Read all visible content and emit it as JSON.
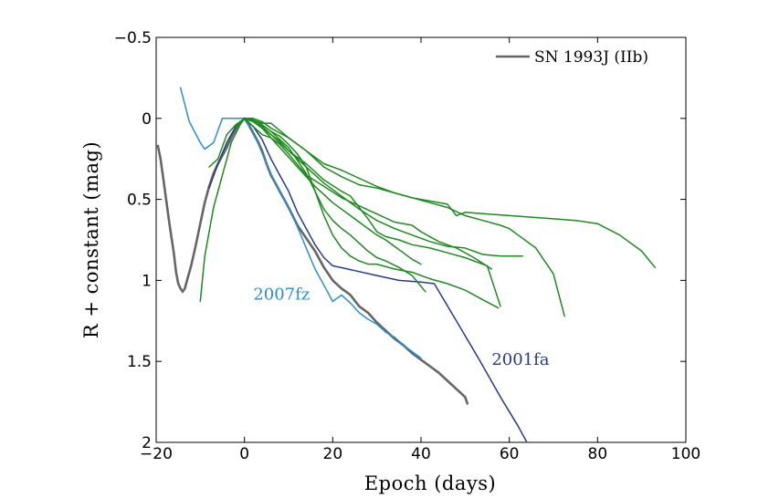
{
  "chart_data": {
    "type": "line",
    "title": "",
    "xlabel": "Epoch (days)",
    "ylabel": "R + constant (mag)",
    "xlim": [
      -20,
      100
    ],
    "ylim": [
      -0.5,
      2
    ],
    "y_inverted": true,
    "grid": false,
    "legend_position": "top-right",
    "x_ticks": [
      -20,
      0,
      20,
      40,
      60,
      80,
      100
    ],
    "x_tick_labels": [
      "−20",
      "0",
      "20",
      "40",
      "60",
      "80",
      "100"
    ],
    "y_ticks": [
      -0.5,
      0,
      0.5,
      1,
      1.5,
      2
    ],
    "y_tick_labels": [
      "−0.5",
      "0",
      "0.5",
      "1",
      "1.5",
      "2"
    ],
    "legend": [
      {
        "label": "SN 1993J (IIb)",
        "color": "#666666"
      }
    ],
    "annotations": [
      {
        "text": "2007fz",
        "x": 2,
        "y": 1.12,
        "color": "#2a8fcf"
      },
      {
        "text": "2001fa",
        "x": 56,
        "y": 1.52,
        "color": "#283a8a"
      }
    ],
    "series": [
      {
        "name": "SN 1993J (IIb)",
        "color": "#666666",
        "width": 2.6,
        "points": [
          [
            -19.6,
            0.17
          ],
          [
            -19,
            0.25
          ],
          [
            -18,
            0.45
          ],
          [
            -17,
            0.65
          ],
          [
            -16,
            0.83
          ],
          [
            -15.5,
            0.95
          ],
          [
            -15,
            1.02
          ],
          [
            -14.5,
            1.05
          ],
          [
            -14,
            1.07
          ],
          [
            -13.5,
            1.05
          ],
          [
            -13,
            1.0
          ],
          [
            -12.5,
            0.95
          ],
          [
            -12,
            0.9
          ],
          [
            -11,
            0.78
          ],
          [
            -10,
            0.65
          ],
          [
            -9,
            0.52
          ],
          [
            -8,
            0.42
          ],
          [
            -7,
            0.34
          ],
          [
            -6,
            0.28
          ],
          [
            -5,
            0.23
          ],
          [
            -4,
            0.18
          ],
          [
            -3,
            0.12
          ],
          [
            -2,
            0.07
          ],
          [
            -1,
            0.03
          ],
          [
            0,
            0.0
          ],
          [
            1,
            0.04
          ],
          [
            2,
            0.09
          ],
          [
            3,
            0.14
          ],
          [
            4,
            0.2
          ],
          [
            5,
            0.28
          ],
          [
            6,
            0.35
          ],
          [
            7,
            0.4
          ],
          [
            8,
            0.45
          ],
          [
            9,
            0.5
          ],
          [
            10,
            0.55
          ],
          [
            12,
            0.66
          ],
          [
            14,
            0.74
          ],
          [
            16,
            0.82
          ],
          [
            18,
            0.92
          ],
          [
            20,
            1.0
          ],
          [
            22,
            1.05
          ],
          [
            24,
            1.09
          ],
          [
            26,
            1.16
          ],
          [
            28,
            1.2
          ],
          [
            30,
            1.26
          ],
          [
            32,
            1.31
          ],
          [
            34,
            1.36
          ],
          [
            36,
            1.4
          ],
          [
            38,
            1.45
          ],
          [
            40,
            1.49
          ],
          [
            42,
            1.53
          ],
          [
            44,
            1.57
          ],
          [
            46,
            1.62
          ],
          [
            48,
            1.67
          ],
          [
            50,
            1.72
          ],
          [
            50.5,
            1.76
          ]
        ]
      },
      {
        "name": "",
        "color": "#2a8fcf",
        "width": 1.5,
        "points": [
          [
            -14.5,
            -0.19
          ],
          [
            -12.5,
            0.02
          ],
          [
            -10,
            0.15
          ],
          [
            -9,
            0.19
          ],
          [
            -7,
            0.15
          ],
          [
            -5,
            0.0
          ],
          [
            -3,
            0.0
          ],
          [
            -1,
            0.0
          ],
          [
            0,
            0.0
          ],
          [
            1,
            0.05
          ],
          [
            3,
            0.15
          ],
          [
            5,
            0.28
          ],
          [
            7,
            0.4
          ],
          [
            10,
            0.55
          ],
          [
            12,
            0.67
          ],
          [
            14,
            0.8
          ],
          [
            16,
            0.93
          ],
          [
            18,
            1.03
          ],
          [
            20,
            1.13
          ],
          [
            22,
            1.09
          ],
          [
            24,
            1.14
          ],
          [
            26,
            1.2
          ],
          [
            28,
            1.24
          ],
          [
            30,
            1.27
          ],
          [
            32,
            1.32
          ],
          [
            34,
            1.35
          ],
          [
            36,
            1.4
          ],
          [
            38,
            1.44
          ],
          [
            40,
            1.48
          ]
        ]
      },
      {
        "name": "",
        "color": "#283a8a",
        "width": 1.5,
        "points": [
          [
            -8,
            0.43
          ],
          [
            -6,
            0.28
          ],
          [
            -4,
            0.15
          ],
          [
            -2,
            0.05
          ],
          [
            0,
            0.0
          ],
          [
            2,
            0.05
          ],
          [
            4,
            0.13
          ],
          [
            6,
            0.25
          ],
          [
            8,
            0.35
          ],
          [
            10,
            0.45
          ],
          [
            12,
            0.58
          ],
          [
            14,
            0.68
          ],
          [
            16,
            0.78
          ],
          [
            18,
            0.86
          ],
          [
            20,
            0.91
          ],
          [
            25,
            0.94
          ],
          [
            30,
            0.97
          ],
          [
            35,
            1.0
          ],
          [
            40,
            1.01
          ],
          [
            43,
            1.02
          ],
          [
            48,
            1.25
          ],
          [
            53,
            1.48
          ],
          [
            58,
            1.72
          ],
          [
            62,
            1.9
          ],
          [
            64,
            2.0
          ]
        ]
      },
      {
        "name": "",
        "color": "#1f8a1f",
        "width": 1.5,
        "points": [
          [
            -10,
            1.13
          ],
          [
            -9,
            0.85
          ],
          [
            -7,
            0.55
          ],
          [
            -5,
            0.35
          ],
          [
            -3,
            0.15
          ],
          [
            -1,
            0.04
          ],
          [
            0,
            0.0
          ],
          [
            2,
            0.05
          ],
          [
            4,
            0.1
          ],
          [
            6,
            0.12
          ],
          [
            8,
            0.16
          ],
          [
            10,
            0.22
          ],
          [
            14,
            0.35
          ],
          [
            18,
            0.42
          ],
          [
            22,
            0.49
          ],
          [
            26,
            0.54
          ],
          [
            30,
            0.59
          ],
          [
            34,
            0.64
          ],
          [
            38,
            0.66
          ],
          [
            40,
            0.7
          ],
          [
            44,
            0.76
          ],
          [
            48,
            0.8
          ],
          [
            52,
            0.86
          ],
          [
            56,
            0.93
          ]
        ]
      },
      {
        "name": "",
        "color": "#1f8a1f",
        "width": 1.5,
        "points": [
          [
            -8,
            0.3
          ],
          [
            -6,
            0.25
          ],
          [
            -4,
            0.1
          ],
          [
            -2,
            0.04
          ],
          [
            0,
            0.0
          ],
          [
            2,
            0.01
          ],
          [
            4,
            0.03
          ],
          [
            6,
            0.03
          ],
          [
            10,
            0.12
          ],
          [
            14,
            0.2
          ],
          [
            18,
            0.3
          ],
          [
            22,
            0.36
          ],
          [
            26,
            0.41
          ],
          [
            30,
            0.43
          ],
          [
            34,
            0.46
          ],
          [
            38,
            0.49
          ],
          [
            42,
            0.52
          ],
          [
            46,
            0.55
          ],
          [
            50,
            0.6
          ],
          [
            54,
            0.63
          ],
          [
            58,
            0.66
          ],
          [
            60,
            0.68
          ],
          [
            62,
            0.72
          ],
          [
            66,
            0.8
          ],
          [
            70,
            0.96
          ],
          [
            72.5,
            1.22
          ]
        ]
      },
      {
        "name": "",
        "color": "#1f8a1f",
        "width": 1.5,
        "points": [
          [
            -2,
            0.05
          ],
          [
            0,
            0.0
          ],
          [
            2,
            0.0
          ],
          [
            4,
            0.02
          ],
          [
            6,
            0.06
          ],
          [
            10,
            0.12
          ],
          [
            14,
            0.2
          ],
          [
            18,
            0.28
          ],
          [
            22,
            0.32
          ],
          [
            26,
            0.37
          ],
          [
            30,
            0.42
          ],
          [
            34,
            0.46
          ],
          [
            38,
            0.49
          ],
          [
            42,
            0.51
          ],
          [
            46,
            0.53
          ],
          [
            48,
            0.6
          ],
          [
            50,
            0.58
          ],
          [
            55,
            0.59
          ],
          [
            60,
            0.6
          ],
          [
            65,
            0.61
          ],
          [
            70,
            0.62
          ],
          [
            75,
            0.63
          ],
          [
            80,
            0.65
          ],
          [
            85,
            0.72
          ],
          [
            90,
            0.82
          ],
          [
            93,
            0.92
          ]
        ]
      },
      {
        "name": "",
        "color": "#1f8a1f",
        "width": 1.5,
        "points": [
          [
            0,
            0.0
          ],
          [
            2,
            0.02
          ],
          [
            4,
            0.06
          ],
          [
            6,
            0.1
          ],
          [
            8,
            0.14
          ],
          [
            10,
            0.2
          ],
          [
            14,
            0.28
          ],
          [
            18,
            0.38
          ],
          [
            22,
            0.45
          ],
          [
            24,
            0.48
          ],
          [
            26,
            0.55
          ],
          [
            28,
            0.62
          ],
          [
            30,
            0.7
          ],
          [
            32,
            0.73
          ],
          [
            35,
            0.75
          ],
          [
            38,
            0.78
          ],
          [
            42,
            0.8
          ],
          [
            46,
            0.83
          ],
          [
            50,
            0.86
          ],
          [
            55,
            0.91
          ],
          [
            58,
            1.16
          ]
        ]
      },
      {
        "name": "",
        "color": "#1f8a1f",
        "width": 1.5,
        "points": [
          [
            0,
            0.0
          ],
          [
            2,
            0.02
          ],
          [
            4,
            0.05
          ],
          [
            6,
            0.1
          ],
          [
            8,
            0.15
          ],
          [
            10,
            0.2
          ],
          [
            14,
            0.3
          ],
          [
            18,
            0.4
          ],
          [
            22,
            0.48
          ],
          [
            26,
            0.56
          ],
          [
            30,
            0.63
          ],
          [
            34,
            0.68
          ],
          [
            38,
            0.72
          ],
          [
            42,
            0.76
          ],
          [
            46,
            0.79
          ],
          [
            50,
            0.8
          ],
          [
            54,
            0.84
          ],
          [
            58,
            0.85
          ],
          [
            63,
            0.85
          ]
        ]
      },
      {
        "name": "",
        "color": "#1f8a1f",
        "width": 1.5,
        "points": [
          [
            0,
            0.0
          ],
          [
            2,
            0.01
          ],
          [
            4,
            0.04
          ],
          [
            6,
            0.08
          ],
          [
            8,
            0.11
          ],
          [
            10,
            0.16
          ],
          [
            12,
            0.22
          ],
          [
            14,
            0.3
          ],
          [
            16,
            0.45
          ],
          [
            18,
            0.6
          ],
          [
            20,
            0.72
          ],
          [
            22,
            0.8
          ],
          [
            24,
            0.85
          ],
          [
            26,
            0.88
          ],
          [
            28,
            0.9
          ],
          [
            30,
            0.9
          ],
          [
            34,
            0.93
          ],
          [
            38,
            0.95
          ],
          [
            42,
            0.99
          ],
          [
            46,
            1.02
          ],
          [
            50,
            1.06
          ],
          [
            54,
            1.12
          ],
          [
            57.5,
            1.17
          ]
        ]
      },
      {
        "name": "",
        "color": "#1f8a1f",
        "width": 1.5,
        "points": [
          [
            0,
            0.0
          ],
          [
            2,
            0.01
          ],
          [
            4,
            0.04
          ],
          [
            6,
            0.08
          ],
          [
            8,
            0.13
          ],
          [
            10,
            0.18
          ],
          [
            12,
            0.26
          ],
          [
            14,
            0.34
          ],
          [
            16,
            0.45
          ],
          [
            18,
            0.56
          ],
          [
            20,
            0.63
          ],
          [
            22,
            0.68
          ],
          [
            24,
            0.72
          ],
          [
            26,
            0.77
          ],
          [
            28,
            0.82
          ],
          [
            30,
            0.86
          ],
          [
            32,
            0.88
          ],
          [
            35,
            0.92
          ],
          [
            38,
            0.97
          ],
          [
            41,
            1.07
          ]
        ]
      },
      {
        "name": "",
        "color": "#1f8a1f",
        "width": 1.5,
        "points": [
          [
            0,
            0.0
          ],
          [
            2,
            0.02
          ],
          [
            4,
            0.06
          ],
          [
            6,
            0.12
          ],
          [
            8,
            0.18
          ],
          [
            10,
            0.24
          ],
          [
            12,
            0.3
          ],
          [
            14,
            0.36
          ],
          [
            16,
            0.42
          ],
          [
            18,
            0.47
          ],
          [
            20,
            0.52
          ],
          [
            22,
            0.56
          ],
          [
            24,
            0.6
          ],
          [
            26,
            0.64
          ],
          [
            28,
            0.68
          ],
          [
            30,
            0.72
          ],
          [
            32,
            0.75
          ],
          [
            34,
            0.79
          ],
          [
            36,
            0.83
          ],
          [
            38,
            0.87
          ],
          [
            40,
            0.9
          ]
        ]
      }
    ]
  }
}
